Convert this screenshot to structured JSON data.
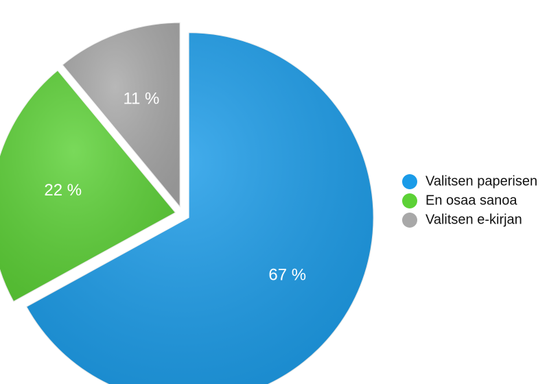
{
  "chart_data": {
    "type": "pie",
    "categories": [
      "Valitsen paperisen",
      "En osaa sanoa",
      "Valitsen e-kirjan"
    ],
    "values": [
      67,
      22,
      11
    ],
    "value_labels": [
      "67 %",
      "22 %",
      "11 %"
    ],
    "colors": [
      "#1a9be8",
      "#5cd136",
      "#a8a8a8"
    ]
  }
}
